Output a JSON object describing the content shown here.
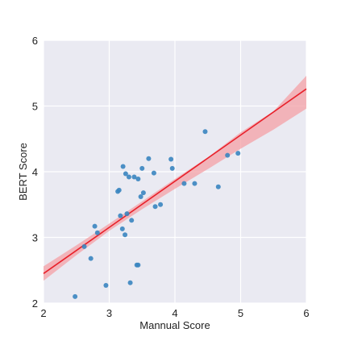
{
  "chart_data": {
    "type": "scatter",
    "title": "",
    "xlabel": "Mannual Score",
    "ylabel": "BERT Score",
    "xlim": [
      2,
      6
    ],
    "ylim": [
      2,
      6
    ],
    "xticks": [
      2,
      3,
      4,
      5,
      6
    ],
    "yticks": [
      2,
      3,
      4,
      5,
      6
    ],
    "grid": true,
    "background": "#eaeaf2",
    "point_color": "#3a85c0",
    "line_color": "#e8202a",
    "band_color": "#f4a0a6",
    "points": [
      {
        "x": 2.48,
        "y": 2.1
      },
      {
        "x": 2.62,
        "y": 2.86
      },
      {
        "x": 2.72,
        "y": 2.68
      },
      {
        "x": 2.78,
        "y": 3.17
      },
      {
        "x": 2.82,
        "y": 3.07
      },
      {
        "x": 2.95,
        "y": 2.27
      },
      {
        "x": 3.13,
        "y": 3.7
      },
      {
        "x": 3.15,
        "y": 3.72
      },
      {
        "x": 3.17,
        "y": 3.33
      },
      {
        "x": 3.2,
        "y": 3.13
      },
      {
        "x": 3.21,
        "y": 4.08
      },
      {
        "x": 3.24,
        "y": 3.04
      },
      {
        "x": 3.25,
        "y": 3.97
      },
      {
        "x": 3.27,
        "y": 3.36
      },
      {
        "x": 3.3,
        "y": 3.92
      },
      {
        "x": 3.32,
        "y": 2.31
      },
      {
        "x": 3.34,
        "y": 3.26
      },
      {
        "x": 3.38,
        "y": 3.92
      },
      {
        "x": 3.42,
        "y": 2.58
      },
      {
        "x": 3.44,
        "y": 2.58
      },
      {
        "x": 3.44,
        "y": 3.89
      },
      {
        "x": 3.48,
        "y": 3.62
      },
      {
        "x": 3.5,
        "y": 4.05
      },
      {
        "x": 3.52,
        "y": 3.68
      },
      {
        "x": 3.6,
        "y": 4.2
      },
      {
        "x": 3.68,
        "y": 3.98
      },
      {
        "x": 3.7,
        "y": 3.47
      },
      {
        "x": 3.78,
        "y": 3.5
      },
      {
        "x": 3.94,
        "y": 4.19
      },
      {
        "x": 3.96,
        "y": 4.05
      },
      {
        "x": 4.14,
        "y": 3.82
      },
      {
        "x": 4.3,
        "y": 3.82
      },
      {
        "x": 4.46,
        "y": 4.61
      },
      {
        "x": 4.66,
        "y": 3.77
      },
      {
        "x": 4.8,
        "y": 4.25
      },
      {
        "x": 4.96,
        "y": 4.28
      }
    ],
    "regression": {
      "x": [
        2,
        6
      ],
      "y": [
        2.45,
        5.26
      ]
    },
    "confidence_band": {
      "x": [
        2,
        2.5,
        3,
        3.5,
        4,
        4.5,
        5,
        5.5,
        6
      ],
      "lower": [
        2.34,
        2.73,
        3.1,
        3.43,
        3.74,
        4.04,
        4.35,
        4.64,
        4.96
      ],
      "upper": [
        2.56,
        2.88,
        3.21,
        3.55,
        3.89,
        4.22,
        4.6,
        4.92,
        5.46
      ]
    }
  }
}
